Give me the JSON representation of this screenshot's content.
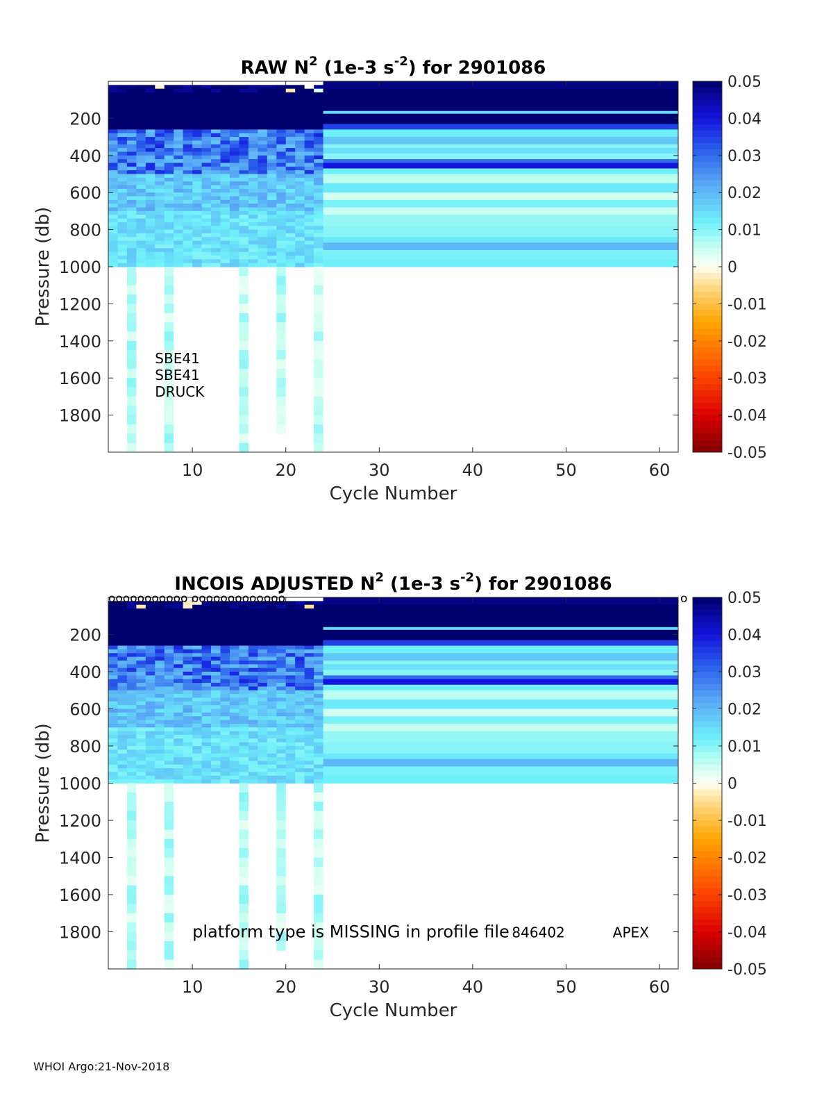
{
  "footer": "WHOI Argo:21-Nov-2018",
  "chart_data": [
    {
      "type": "heatmap",
      "title_parts": [
        "RAW N",
        "2",
        " (1e-3 s",
        "-2",
        ") for 2901086"
      ],
      "xlabel": "Cycle Number",
      "ylabel": "Pressure (db)",
      "xlim": [
        1,
        62
      ],
      "ylim": [
        0,
        2000
      ],
      "xticks": [
        10,
        20,
        30,
        40,
        50,
        60
      ],
      "yticks": [
        200,
        400,
        600,
        800,
        1000,
        1200,
        1400,
        1600,
        1800
      ],
      "grid": false,
      "colorbar": {
        "colormap": "jet-diverging",
        "clim": [
          -0.05,
          0.05
        ],
        "ticks": [
          "0.05",
          "0.04",
          "0.03",
          "0.02",
          "0.01",
          "0",
          "-0.01",
          "-0.02",
          "-0.03",
          "-0.04",
          "-0.05"
        ]
      },
      "profiles": {
        "variable_cycles": [
          1,
          24
        ],
        "shallow_depth_db": 1000,
        "deep_cycles": [
          3.5,
          7.5,
          15.5,
          19.5,
          23.5
        ],
        "deep_max_db": [
          2000,
          2000,
          2000,
          1900,
          2000
        ],
        "constant_cycles": [
          24,
          62
        ]
      },
      "annotations": [
        "SBE41",
        "SBE41",
        "DRUCK"
      ],
      "markers": ""
    },
    {
      "type": "heatmap",
      "title_parts": [
        "INCOIS  ADJUSTED N",
        "2",
        " (1e-3 s",
        "-2",
        ") for 2901086"
      ],
      "xlabel": "Cycle Number",
      "ylabel": "Pressure (db)",
      "xlim": [
        1,
        62
      ],
      "ylim": [
        0,
        2000
      ],
      "xticks": [
        10,
        20,
        30,
        40,
        50,
        60
      ],
      "yticks": [
        200,
        400,
        600,
        800,
        1000,
        1200,
        1400,
        1600,
        1800
      ],
      "grid": false,
      "colorbar": {
        "colormap": "jet-diverging",
        "clim": [
          -0.05,
          0.05
        ],
        "ticks": [
          "0.05",
          "0.04",
          "0.03",
          "0.02",
          "0.01",
          "0",
          "-0.01",
          "-0.02",
          "-0.03",
          "-0.04",
          "-0.05"
        ]
      },
      "profiles": {
        "variable_cycles": [
          1,
          24
        ],
        "shallow_depth_db": 1000,
        "deep_cycles": [
          3.5,
          7.5,
          15.5,
          19.5,
          23.5
        ],
        "deep_max_db": [
          2000,
          2000,
          2000,
          1900,
          2000
        ],
        "constant_cycles": [
          24,
          62
        ]
      },
      "annotations": [
        "platform type is MISSING in profile file",
        "846402",
        "APEX"
      ],
      "markers": "ooooooooooo  ooooooooooooo",
      "marker_end": "o"
    }
  ]
}
